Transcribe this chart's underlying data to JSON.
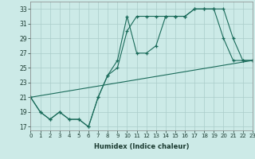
{
  "xlabel": "Humidex (Indice chaleur)",
  "bg_color": "#cceae7",
  "grid_color": "#aaccca",
  "line_color": "#1a6b5a",
  "xlim": [
    0,
    23
  ],
  "ylim": [
    16.5,
    34
  ],
  "xticks": [
    0,
    1,
    2,
    3,
    4,
    5,
    6,
    7,
    8,
    9,
    10,
    11,
    12,
    13,
    14,
    15,
    16,
    17,
    18,
    19,
    20,
    21,
    22,
    23
  ],
  "yticks": [
    17,
    19,
    21,
    23,
    25,
    27,
    29,
    31,
    33
  ],
  "line1_x": [
    0,
    1,
    2,
    3,
    4,
    5,
    6,
    7,
    8,
    9,
    10,
    11,
    12,
    13,
    14,
    15,
    16,
    17,
    18,
    19,
    20,
    21,
    22,
    23
  ],
  "line1_y": [
    21,
    19,
    18,
    19,
    18,
    18,
    17,
    21,
    24,
    26,
    32,
    27,
    27,
    28,
    32,
    32,
    32,
    33,
    33,
    33,
    29,
    26,
    26,
    26
  ],
  "line2_x": [
    0,
    1,
    2,
    3,
    4,
    5,
    6,
    7,
    8,
    9,
    10,
    11,
    12,
    13,
    14,
    15,
    16,
    17,
    18,
    19,
    20,
    21,
    22,
    23
  ],
  "line2_y": [
    21,
    19,
    18,
    19,
    18,
    18,
    17,
    21,
    24,
    25,
    30,
    32,
    32,
    32,
    32,
    32,
    32,
    33,
    33,
    33,
    33,
    29,
    26,
    26
  ],
  "line3_x": [
    0,
    23
  ],
  "line3_y": [
    21,
    26
  ]
}
